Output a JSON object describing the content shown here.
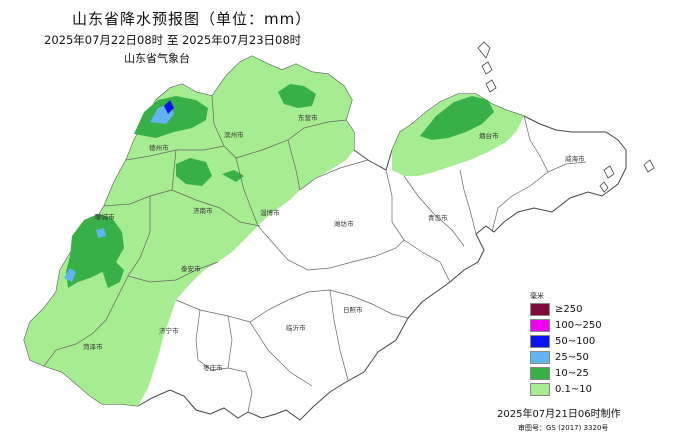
{
  "title": "山东省降水预报图（单位：mm）",
  "period": "2025年07月22日08时  至  2025年07月23日08时",
  "agency": "山东省气象台",
  "legend": {
    "unit": "毫米",
    "items": [
      {
        "label": "≥250",
        "color": "#7f0a3c"
      },
      {
        "label": "100~250",
        "color": "#f000f0"
      },
      {
        "label": "50~100",
        "color": "#0a14f0"
      },
      {
        "label": "25~50",
        "color": "#62b4f0"
      },
      {
        "label": "10~25",
        "color": "#38b048"
      },
      {
        "label": "0.1~10",
        "color": "#a6ec90"
      }
    ]
  },
  "cities": {
    "dezhou": "德州市",
    "binzhou": "滨州市",
    "dongying": "东营市",
    "yantai": "烟台市",
    "weihai": "威海市",
    "liaocheng": "聊城市",
    "jinan": "济南市",
    "zibo": "淄博市",
    "weifang": "潍坊市",
    "qingdao": "青岛市",
    "taian": "泰安市",
    "jining": "济宁市",
    "heze": "菏泽市",
    "linyi": "临沂市",
    "rizhao": "日照市",
    "zaozhuang": "枣庄市"
  },
  "made_at": "2025年07月21日06时制作",
  "review_no": "审图号：GS (2017) 3320号"
}
